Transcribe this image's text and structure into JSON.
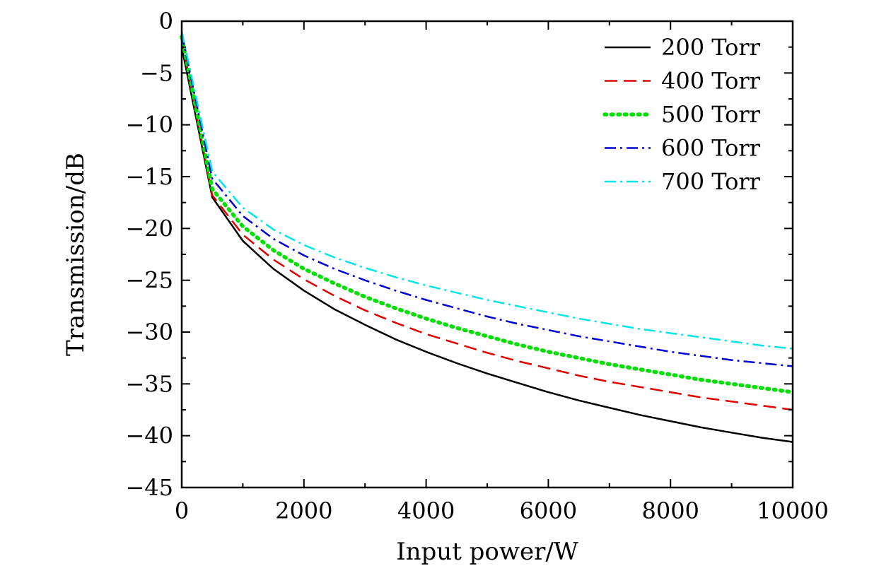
{
  "chart_data": {
    "type": "line",
    "xlabel": "Input power/W",
    "ylabel": "Transmission/dB",
    "xlim": [
      0,
      10000
    ],
    "ylim": [
      -45,
      0
    ],
    "xticks": [
      0,
      2000,
      4000,
      6000,
      8000,
      10000
    ],
    "yticks": [
      0,
      -5,
      -10,
      -15,
      -20,
      -25,
      -30,
      -35,
      -40,
      -45
    ],
    "xtick_labels": [
      "0",
      "2000",
      "4000",
      "6000",
      "8000",
      "10000"
    ],
    "ytick_labels": [
      "0",
      "−5",
      "−10",
      "−15",
      "−20",
      "−25",
      "−30",
      "−35",
      "−40",
      "−45"
    ],
    "grid": false,
    "legend_position": "top-right",
    "x": [
      0,
      500,
      1000,
      1500,
      2000,
      2500,
      3000,
      3500,
      4000,
      4500,
      5000,
      5500,
      6000,
      6500,
      7000,
      7500,
      8000,
      8500,
      9000,
      9500,
      10000
    ],
    "series": [
      {
        "name": "200 Torr",
        "color": "#000000",
        "dash": "solid",
        "values": [
          -2.5,
          -17.0,
          -21.2,
          -23.9,
          -26.0,
          -27.8,
          -29.3,
          -30.7,
          -31.9,
          -33.0,
          -34.0,
          -34.9,
          -35.8,
          -36.6,
          -37.3,
          -38.0,
          -38.6,
          -39.2,
          -39.7,
          -40.2,
          -40.6
        ]
      },
      {
        "name": "400 Torr",
        "color": "#e00000",
        "dash": "dashed",
        "values": [
          -1.8,
          -16.8,
          -20.6,
          -23.0,
          -24.9,
          -26.5,
          -27.9,
          -29.1,
          -30.2,
          -31.1,
          -32.0,
          -32.8,
          -33.5,
          -34.2,
          -34.8,
          -35.3,
          -35.8,
          -36.3,
          -36.7,
          -37.1,
          -37.5
        ]
      },
      {
        "name": "500 Torr",
        "color": "#00e000",
        "dash": "dotted",
        "values": [
          -1.5,
          -16.2,
          -19.8,
          -22.1,
          -23.9,
          -25.3,
          -26.6,
          -27.7,
          -28.7,
          -29.6,
          -30.4,
          -31.2,
          -31.9,
          -32.5,
          -33.1,
          -33.6,
          -34.1,
          -34.6,
          -35.0,
          -35.4,
          -35.8
        ]
      },
      {
        "name": "600 Torr",
        "color": "#0000d0",
        "dash": "dashdot",
        "values": [
          -1.2,
          -15.2,
          -18.8,
          -21.0,
          -22.6,
          -23.9,
          -25.0,
          -26.0,
          -26.9,
          -27.7,
          -28.5,
          -29.2,
          -29.8,
          -30.4,
          -30.9,
          -31.4,
          -31.9,
          -32.3,
          -32.7,
          -33.0,
          -33.3
        ]
      },
      {
        "name": "700 Torr",
        "color": "#00e5e5",
        "dash": "dashdot",
        "values": [
          -1.0,
          -14.5,
          -18.0,
          -20.1,
          -21.6,
          -22.8,
          -23.8,
          -24.7,
          -25.5,
          -26.2,
          -26.9,
          -27.5,
          -28.1,
          -28.7,
          -29.2,
          -29.7,
          -30.1,
          -30.5,
          -30.9,
          -31.3,
          -31.6
        ]
      }
    ]
  }
}
